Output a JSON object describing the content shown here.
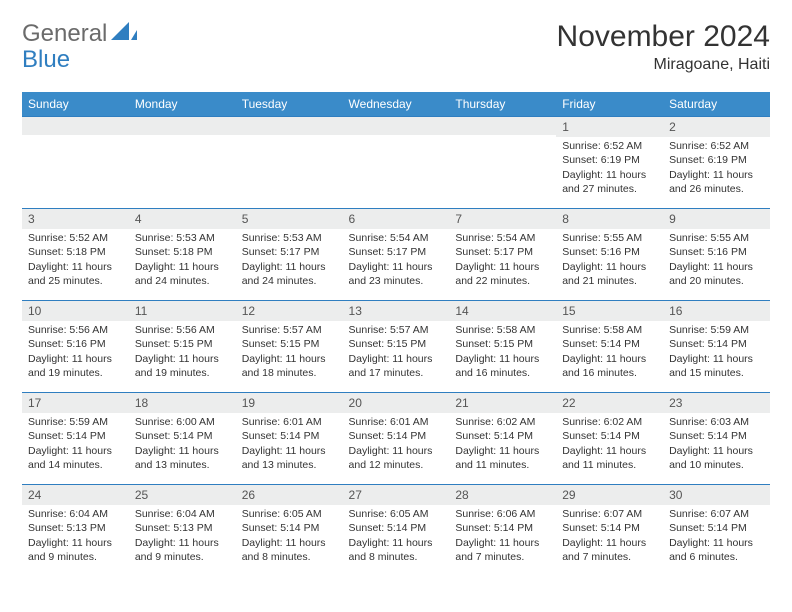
{
  "logo": {
    "part1": "General",
    "part2": "Blue"
  },
  "title": "November 2024",
  "subtitle": "Miragoane, Haiti",
  "colors": {
    "header_bg": "#3a8bc9",
    "header_text": "#ffffff",
    "cell_border": "#2f7ec0",
    "daynum_bg": "#eceded",
    "logo_gray": "#6b6b6b",
    "logo_blue": "#2f7ec0",
    "body_text": "#333333",
    "background": "#ffffff"
  },
  "typography": {
    "title_fontsize": 30,
    "subtitle_fontsize": 16,
    "dayhead_fontsize": 12,
    "cell_fontsize": 10.5,
    "logo_fontsize": 24
  },
  "day_headers": [
    "Sunday",
    "Monday",
    "Tuesday",
    "Wednesday",
    "Thursday",
    "Friday",
    "Saturday"
  ],
  "weeks": [
    [
      {
        "n": "",
        "sr": "",
        "ss": "",
        "dl": ""
      },
      {
        "n": "",
        "sr": "",
        "ss": "",
        "dl": ""
      },
      {
        "n": "",
        "sr": "",
        "ss": "",
        "dl": ""
      },
      {
        "n": "",
        "sr": "",
        "ss": "",
        "dl": ""
      },
      {
        "n": "",
        "sr": "",
        "ss": "",
        "dl": ""
      },
      {
        "n": "1",
        "sr": "Sunrise: 6:52 AM",
        "ss": "Sunset: 6:19 PM",
        "dl": "Daylight: 11 hours and 27 minutes."
      },
      {
        "n": "2",
        "sr": "Sunrise: 6:52 AM",
        "ss": "Sunset: 6:19 PM",
        "dl": "Daylight: 11 hours and 26 minutes."
      }
    ],
    [
      {
        "n": "3",
        "sr": "Sunrise: 5:52 AM",
        "ss": "Sunset: 5:18 PM",
        "dl": "Daylight: 11 hours and 25 minutes."
      },
      {
        "n": "4",
        "sr": "Sunrise: 5:53 AM",
        "ss": "Sunset: 5:18 PM",
        "dl": "Daylight: 11 hours and 24 minutes."
      },
      {
        "n": "5",
        "sr": "Sunrise: 5:53 AM",
        "ss": "Sunset: 5:17 PM",
        "dl": "Daylight: 11 hours and 24 minutes."
      },
      {
        "n": "6",
        "sr": "Sunrise: 5:54 AM",
        "ss": "Sunset: 5:17 PM",
        "dl": "Daylight: 11 hours and 23 minutes."
      },
      {
        "n": "7",
        "sr": "Sunrise: 5:54 AM",
        "ss": "Sunset: 5:17 PM",
        "dl": "Daylight: 11 hours and 22 minutes."
      },
      {
        "n": "8",
        "sr": "Sunrise: 5:55 AM",
        "ss": "Sunset: 5:16 PM",
        "dl": "Daylight: 11 hours and 21 minutes."
      },
      {
        "n": "9",
        "sr": "Sunrise: 5:55 AM",
        "ss": "Sunset: 5:16 PM",
        "dl": "Daylight: 11 hours and 20 minutes."
      }
    ],
    [
      {
        "n": "10",
        "sr": "Sunrise: 5:56 AM",
        "ss": "Sunset: 5:16 PM",
        "dl": "Daylight: 11 hours and 19 minutes."
      },
      {
        "n": "11",
        "sr": "Sunrise: 5:56 AM",
        "ss": "Sunset: 5:15 PM",
        "dl": "Daylight: 11 hours and 19 minutes."
      },
      {
        "n": "12",
        "sr": "Sunrise: 5:57 AM",
        "ss": "Sunset: 5:15 PM",
        "dl": "Daylight: 11 hours and 18 minutes."
      },
      {
        "n": "13",
        "sr": "Sunrise: 5:57 AM",
        "ss": "Sunset: 5:15 PM",
        "dl": "Daylight: 11 hours and 17 minutes."
      },
      {
        "n": "14",
        "sr": "Sunrise: 5:58 AM",
        "ss": "Sunset: 5:15 PM",
        "dl": "Daylight: 11 hours and 16 minutes."
      },
      {
        "n": "15",
        "sr": "Sunrise: 5:58 AM",
        "ss": "Sunset: 5:14 PM",
        "dl": "Daylight: 11 hours and 16 minutes."
      },
      {
        "n": "16",
        "sr": "Sunrise: 5:59 AM",
        "ss": "Sunset: 5:14 PM",
        "dl": "Daylight: 11 hours and 15 minutes."
      }
    ],
    [
      {
        "n": "17",
        "sr": "Sunrise: 5:59 AM",
        "ss": "Sunset: 5:14 PM",
        "dl": "Daylight: 11 hours and 14 minutes."
      },
      {
        "n": "18",
        "sr": "Sunrise: 6:00 AM",
        "ss": "Sunset: 5:14 PM",
        "dl": "Daylight: 11 hours and 13 minutes."
      },
      {
        "n": "19",
        "sr": "Sunrise: 6:01 AM",
        "ss": "Sunset: 5:14 PM",
        "dl": "Daylight: 11 hours and 13 minutes."
      },
      {
        "n": "20",
        "sr": "Sunrise: 6:01 AM",
        "ss": "Sunset: 5:14 PM",
        "dl": "Daylight: 11 hours and 12 minutes."
      },
      {
        "n": "21",
        "sr": "Sunrise: 6:02 AM",
        "ss": "Sunset: 5:14 PM",
        "dl": "Daylight: 11 hours and 11 minutes."
      },
      {
        "n": "22",
        "sr": "Sunrise: 6:02 AM",
        "ss": "Sunset: 5:14 PM",
        "dl": "Daylight: 11 hours and 11 minutes."
      },
      {
        "n": "23",
        "sr": "Sunrise: 6:03 AM",
        "ss": "Sunset: 5:14 PM",
        "dl": "Daylight: 11 hours and 10 minutes."
      }
    ],
    [
      {
        "n": "24",
        "sr": "Sunrise: 6:04 AM",
        "ss": "Sunset: 5:13 PM",
        "dl": "Daylight: 11 hours and 9 minutes."
      },
      {
        "n": "25",
        "sr": "Sunrise: 6:04 AM",
        "ss": "Sunset: 5:13 PM",
        "dl": "Daylight: 11 hours and 9 minutes."
      },
      {
        "n": "26",
        "sr": "Sunrise: 6:05 AM",
        "ss": "Sunset: 5:14 PM",
        "dl": "Daylight: 11 hours and 8 minutes."
      },
      {
        "n": "27",
        "sr": "Sunrise: 6:05 AM",
        "ss": "Sunset: 5:14 PM",
        "dl": "Daylight: 11 hours and 8 minutes."
      },
      {
        "n": "28",
        "sr": "Sunrise: 6:06 AM",
        "ss": "Sunset: 5:14 PM",
        "dl": "Daylight: 11 hours and 7 minutes."
      },
      {
        "n": "29",
        "sr": "Sunrise: 6:07 AM",
        "ss": "Sunset: 5:14 PM",
        "dl": "Daylight: 11 hours and 7 minutes."
      },
      {
        "n": "30",
        "sr": "Sunrise: 6:07 AM",
        "ss": "Sunset: 5:14 PM",
        "dl": "Daylight: 11 hours and 6 minutes."
      }
    ]
  ]
}
